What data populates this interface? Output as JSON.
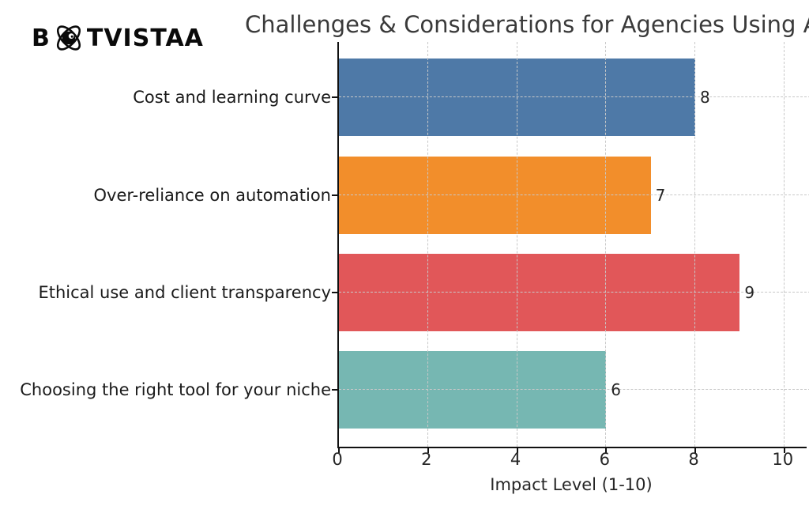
{
  "brand": {
    "text_prefix": "B",
    "text_suffix": "TVISTAA",
    "icon": "atom-bot-icon"
  },
  "chart_data": {
    "type": "bar",
    "orientation": "horizontal",
    "title": "Challenges & Considerations for Agencies Using A",
    "xlabel": "Impact Level (1-10)",
    "categories": [
      "Cost and learning curve",
      "Over-reliance on automation",
      "Ethical use and client transparency",
      "Choosing the right tool for your niche"
    ],
    "values": [
      8,
      7,
      9,
      6
    ],
    "value_labels": [
      "8",
      "7",
      "9",
      "6"
    ],
    "bar_colors": [
      "#4e79a7",
      "#f28e2b",
      "#e15759",
      "#76b7b2"
    ],
    "xticks": [
      0,
      2,
      4,
      6,
      8,
      10
    ],
    "xlim": [
      0,
      10.5
    ],
    "grid": "dashed-both-axes-over-bars",
    "legend": "none",
    "spine_color": "#111111",
    "grid_color": "#c8c8c8",
    "title_color": "#3a3a3a",
    "text_color": "#262626"
  }
}
